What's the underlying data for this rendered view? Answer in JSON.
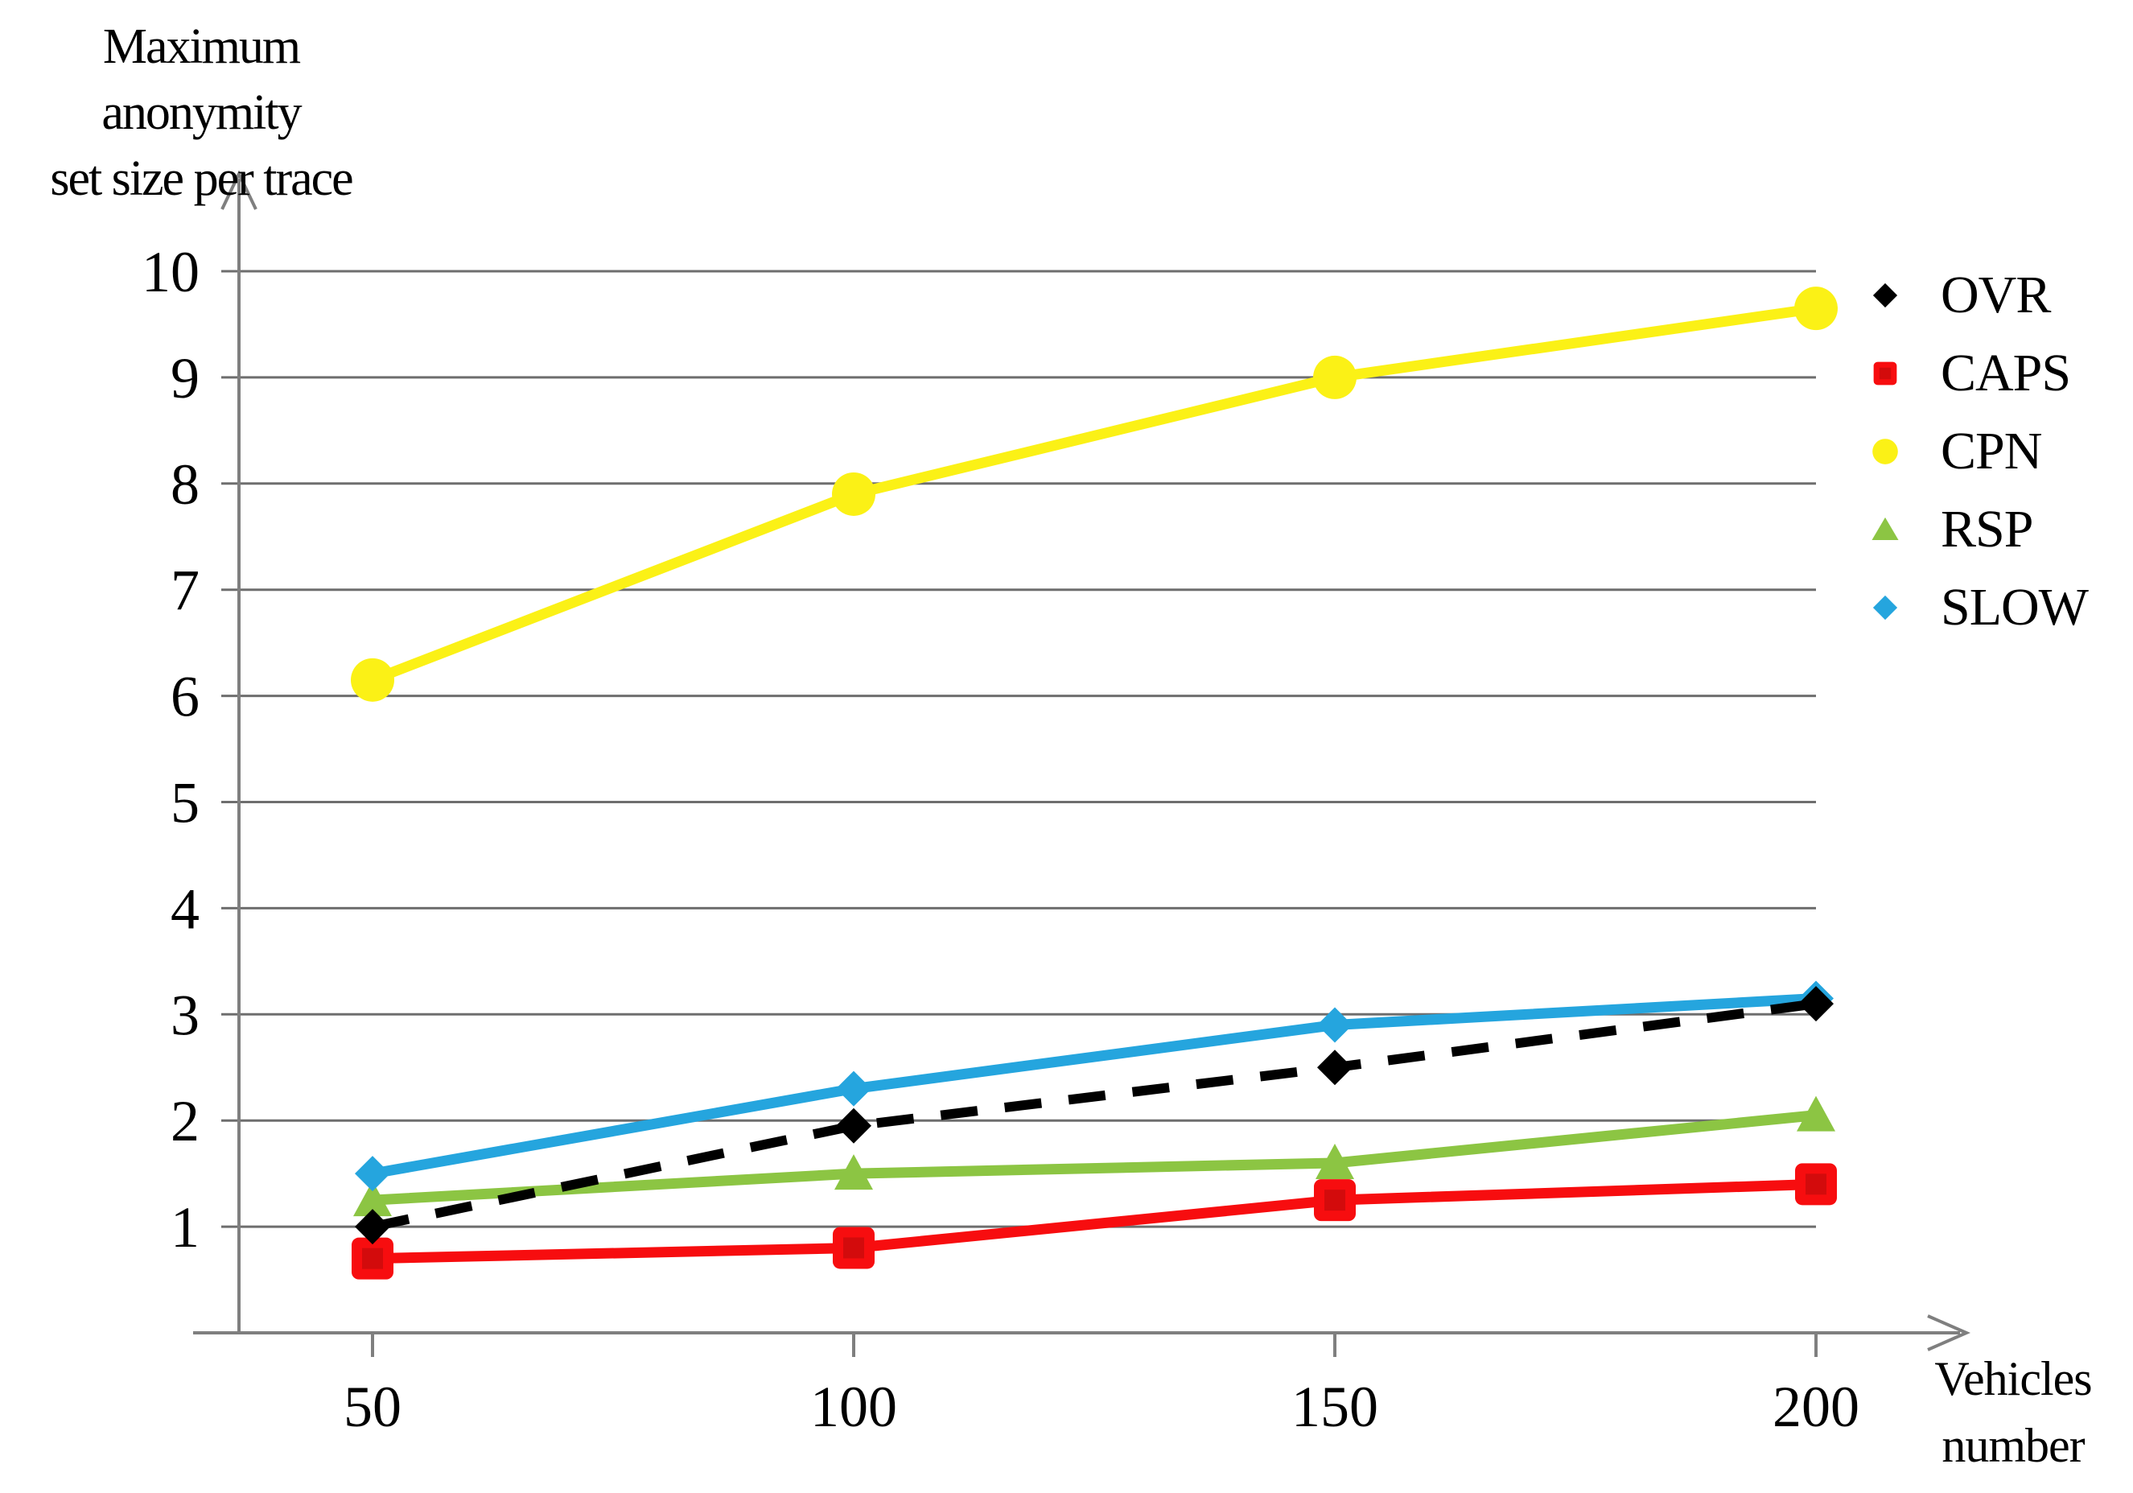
{
  "figure": {
    "ylabel_lines": [
      "Maximum anonymity",
      "set size per trace"
    ],
    "xlabel_lines": [
      "Vehicles",
      "number"
    ]
  },
  "chart_data": {
    "type": "line",
    "title": "",
    "xlabel": "Vehicles number",
    "ylabel": "Maximum anonymity set size per trace",
    "x": [
      50,
      100,
      150,
      200
    ],
    "x_tick_labels": [
      "50",
      "100",
      "150",
      "200"
    ],
    "y_ticks": [
      1,
      2,
      3,
      4,
      5,
      6,
      7,
      8,
      9,
      10
    ],
    "ylim": [
      0,
      10.9
    ],
    "grid": "horizontal",
    "legend_position": "right",
    "axis_color": "#7f7f7f",
    "gridline_color": "#6e6e6e",
    "series": [
      {
        "name": "OVR",
        "marker": "diamond",
        "line_style": "dashed",
        "color": "#000000",
        "values": [
          1.0,
          1.95,
          2.5,
          3.1
        ]
      },
      {
        "name": "CAPS",
        "marker": "square",
        "line_style": "solid",
        "color": "#f70d0f",
        "marker_inner_color": "#d30b0c",
        "values": [
          0.7,
          0.8,
          1.25,
          1.4
        ]
      },
      {
        "name": "CPN",
        "marker": "circle",
        "line_style": "solid",
        "color": "#fbf116",
        "values": [
          6.15,
          7.9,
          9.0,
          9.65
        ]
      },
      {
        "name": "RSP",
        "marker": "triangle",
        "line_style": "solid",
        "color": "#8cc543",
        "values": [
          1.25,
          1.5,
          1.6,
          2.05
        ]
      },
      {
        "name": "SLOW",
        "marker": "diamond",
        "line_style": "solid",
        "color": "#25a5de",
        "values": [
          1.5,
          2.3,
          2.9,
          3.15
        ]
      }
    ],
    "draw_order": [
      3,
      1,
      4,
      0,
      2
    ]
  }
}
